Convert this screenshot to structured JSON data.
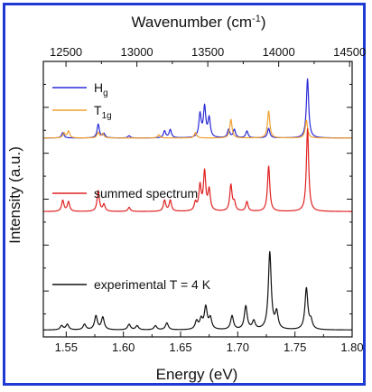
{
  "chart_data": {
    "type": "line",
    "bottom_axis": {
      "label": "Energy (eV)",
      "range": [
        1.53,
        1.8
      ],
      "ticks": [
        "1.55",
        "1.60",
        "1.65",
        "1.70",
        "1.75",
        "1.80"
      ],
      "tick_values": [
        1.55,
        1.6,
        1.65,
        1.7,
        1.75,
        1.8
      ]
    },
    "top_axis": {
      "label_prefix": "Wavenumber (cm",
      "label_sup": "-1",
      "label_suffix": ")",
      "ticks": [
        "12500",
        "13000",
        "13500",
        "14000",
        "14500"
      ],
      "tick_values": [
        12500,
        13000,
        13500,
        14000,
        14500
      ]
    },
    "left_axis": {
      "label": "Intensity (a.u.)",
      "range": [
        0,
        1
      ]
    },
    "legend": [
      {
        "name_main": "H",
        "name_sub": "g",
        "color": "#2b2bd8"
      },
      {
        "name_main": "T",
        "name_sub": "1g",
        "color": "#f0a030"
      }
    ],
    "labels": [
      {
        "text": "summed spectrum",
        "color": "#e02020"
      },
      {
        "text": "experimental T = 4 K",
        "color": "#111111"
      }
    ],
    "series": [
      {
        "name": "H",
        "color": "#2b2bd8",
        "baseline": 0.722,
        "width": 0.0012,
        "peaks": [
          [
            1.547,
            0.02
          ],
          [
            1.578,
            0.05
          ],
          [
            1.583,
            0.015
          ],
          [
            1.605,
            0.008
          ],
          [
            1.636,
            0.025
          ],
          [
            1.641,
            0.03
          ],
          [
            1.667,
            0.085
          ],
          [
            1.671,
            0.11
          ],
          [
            1.675,
            0.07
          ],
          [
            1.692,
            0.03
          ],
          [
            1.697,
            0.03
          ],
          [
            1.708,
            0.025
          ],
          [
            1.727,
            0.035
          ],
          [
            1.761,
            0.215
          ]
        ]
      },
      {
        "name": "T",
        "color": "#f0a030",
        "baseline": 0.722,
        "width": 0.0012,
        "peaks": [
          [
            1.548,
            0.018
          ],
          [
            1.552,
            0.025
          ],
          [
            1.578,
            0.02
          ],
          [
            1.582,
            0.015
          ],
          [
            1.631,
            0.012
          ],
          [
            1.663,
            0.02
          ],
          [
            1.694,
            0.068
          ],
          [
            1.727,
            0.098
          ],
          [
            1.76,
            0.065
          ]
        ]
      },
      {
        "name": "summed spectrum",
        "color": "#e02020",
        "baseline": 0.455,
        "width": 0.0012,
        "peaks": [
          [
            1.547,
            0.04
          ],
          [
            1.552,
            0.035
          ],
          [
            1.578,
            0.075
          ],
          [
            1.583,
            0.025
          ],
          [
            1.605,
            0.015
          ],
          [
            1.636,
            0.04
          ],
          [
            1.641,
            0.04
          ],
          [
            1.663,
            0.03
          ],
          [
            1.667,
            0.09
          ],
          [
            1.671,
            0.14
          ],
          [
            1.675,
            0.075
          ],
          [
            1.694,
            0.095
          ],
          [
            1.697,
            0.03
          ],
          [
            1.708,
            0.035
          ],
          [
            1.727,
            0.165
          ],
          [
            1.761,
            0.3
          ]
        ]
      },
      {
        "name": "experimental T = 4 K",
        "color": "#111111",
        "baseline": 0.025,
        "width": 0.0015,
        "peaks": [
          [
            1.546,
            0.015
          ],
          [
            1.551,
            0.02
          ],
          [
            1.566,
            0.02
          ],
          [
            1.576,
            0.05
          ],
          [
            1.582,
            0.045
          ],
          [
            1.605,
            0.02
          ],
          [
            1.612,
            0.015
          ],
          [
            1.628,
            0.015
          ],
          [
            1.638,
            0.025
          ],
          [
            1.664,
            0.03
          ],
          [
            1.668,
            0.035
          ],
          [
            1.672,
            0.08
          ],
          [
            1.676,
            0.04
          ],
          [
            1.695,
            0.05
          ],
          [
            1.707,
            0.085
          ],
          [
            1.714,
            0.03
          ],
          [
            1.728,
            0.28
          ],
          [
            1.734,
            0.06
          ],
          [
            1.76,
            0.15
          ],
          [
            1.764,
            0.03
          ]
        ]
      }
    ]
  }
}
